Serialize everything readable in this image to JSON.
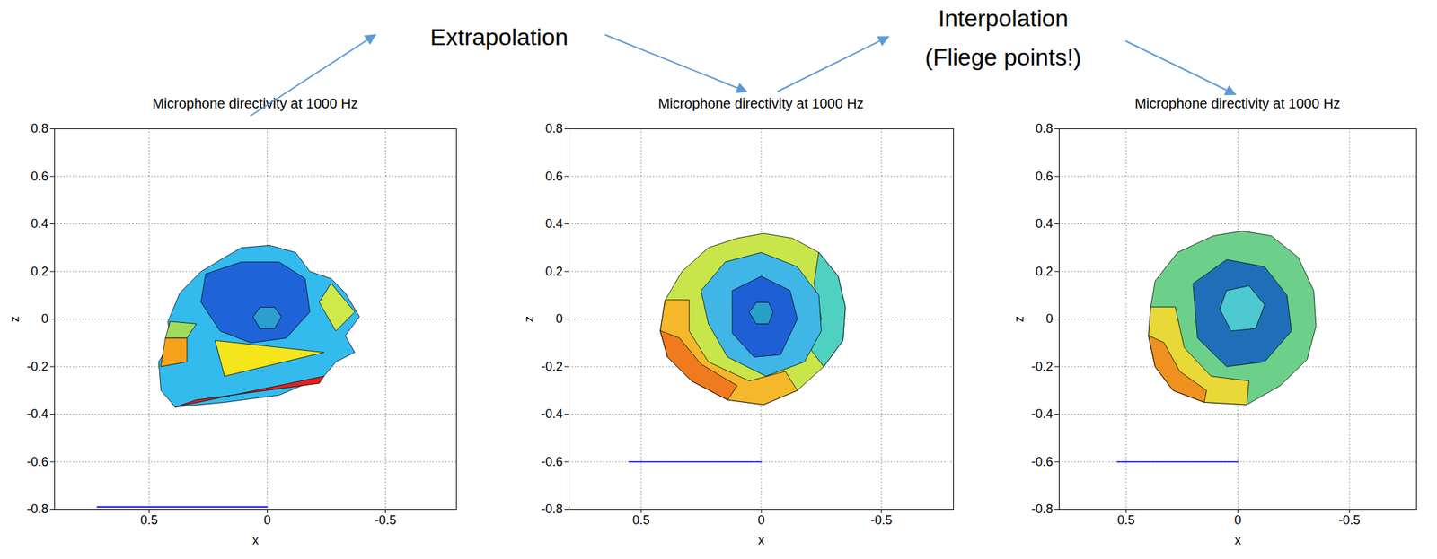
{
  "annotations": [
    "Extrapolation",
    "Interpolation\n(Fliege points!)"
  ],
  "chart_data": [
    {
      "type": "surface",
      "title": "Microphone directivity at 1000 Hz",
      "xlabel": "x",
      "ylabel": "z",
      "xlim": [
        0.9,
        -0.8
      ],
      "ylim": [
        -0.8,
        0.8
      ],
      "xticks": [
        0.5,
        0,
        -0.5
      ],
      "yticks": [
        -0.8,
        -0.6,
        -0.4,
        -0.2,
        0,
        0.2,
        0.4,
        0.6,
        0.8
      ],
      "grid": true,
      "patches": [
        {
          "color": "#33bbee",
          "points": [
            [
              0.42,
              -0.01
            ],
            [
              0.37,
              0.11
            ],
            [
              0.28,
              0.2
            ],
            [
              0.18,
              0.26
            ],
            [
              0.11,
              0.3
            ],
            [
              -0.01,
              0.31
            ],
            [
              -0.12,
              0.28
            ],
            [
              -0.18,
              0.2
            ],
            [
              -0.27,
              0.17
            ],
            [
              -0.33,
              0.11
            ],
            [
              -0.39,
              0.01
            ],
            [
              -0.33,
              -0.07
            ],
            [
              -0.37,
              -0.14
            ],
            [
              -0.29,
              -0.18
            ],
            [
              -0.24,
              -0.24
            ],
            [
              -0.05,
              -0.32
            ],
            [
              0.18,
              -0.35
            ],
            [
              0.39,
              -0.37
            ],
            [
              0.45,
              -0.3
            ],
            [
              0.46,
              -0.18
            ],
            [
              0.41,
              -0.1
            ]
          ]
        },
        {
          "color": "#1e64d8",
          "points": [
            [
              0.26,
              0.19
            ],
            [
              0.11,
              0.24
            ],
            [
              -0.05,
              0.24
            ],
            [
              -0.16,
              0.17
            ],
            [
              -0.18,
              0.03
            ],
            [
              -0.08,
              -0.08
            ],
            [
              0.07,
              -0.1
            ],
            [
              0.2,
              -0.05
            ],
            [
              0.28,
              0.07
            ]
          ]
        },
        {
          "color": "#2a9fd0",
          "points": [
            [
              0.06,
              0.01
            ],
            [
              0.03,
              0.05
            ],
            [
              -0.03,
              0.05
            ],
            [
              -0.06,
              0.01
            ],
            [
              -0.03,
              -0.04
            ],
            [
              0.03,
              -0.04
            ]
          ]
        },
        {
          "color": "#f5e51b",
          "points": [
            [
              0.22,
              -0.09
            ],
            [
              -0.24,
              -0.14
            ],
            [
              0.18,
              -0.24
            ]
          ]
        },
        {
          "color": "#9fdc5a",
          "points": [
            [
              0.41,
              -0.01
            ],
            [
              0.3,
              -0.02
            ],
            [
              0.34,
              -0.08
            ],
            [
              0.43,
              -0.08
            ]
          ]
        },
        {
          "color": "#f7a21b",
          "points": [
            [
              0.43,
              -0.08
            ],
            [
              0.34,
              -0.08
            ],
            [
              0.34,
              -0.18
            ],
            [
              0.45,
              -0.2
            ]
          ]
        },
        {
          "color": "#cfe84a",
          "points": [
            [
              -0.27,
              0.15
            ],
            [
              -0.37,
              0.03
            ],
            [
              -0.29,
              -0.05
            ],
            [
              -0.22,
              0.07
            ]
          ]
        },
        {
          "color": "#e8201a",
          "points": [
            [
              0.39,
              -0.37
            ],
            [
              -0.24,
              -0.24
            ],
            [
              -0.22,
              -0.27
            ],
            [
              0.3,
              -0.34
            ]
          ]
        }
      ],
      "series": [
        {
          "type": "line",
          "color": "#0000ff",
          "x": [
            0.72,
            0
          ],
          "values": [
            -0.79,
            -0.79
          ]
        }
      ]
    },
    {
      "type": "surface",
      "title": "Microphone directivity at 1000 Hz",
      "xlabel": "x",
      "ylabel": "z",
      "xlim": [
        0.8,
        -0.8
      ],
      "ylim": [
        -0.8,
        0.8
      ],
      "xticks": [
        0.5,
        0,
        -0.5
      ],
      "yticks": [
        -0.8,
        -0.6,
        -0.4,
        -0.2,
        0,
        0.2,
        0.4,
        0.6,
        0.8
      ],
      "grid": true,
      "patches": [
        {
          "color": "#c8e64a",
          "points": [
            [
              0.4,
              0.08
            ],
            [
              0.33,
              0.2
            ],
            [
              0.22,
              0.3
            ],
            [
              0.1,
              0.34
            ],
            [
              -0.01,
              0.36
            ],
            [
              -0.13,
              0.34
            ],
            [
              -0.24,
              0.28
            ],
            [
              -0.32,
              0.18
            ],
            [
              -0.35,
              0.05
            ],
            [
              -0.34,
              -0.09
            ],
            [
              -0.26,
              -0.2
            ],
            [
              -0.15,
              -0.3
            ],
            [
              -0.01,
              -0.36
            ],
            [
              0.14,
              -0.34
            ],
            [
              0.29,
              -0.26
            ],
            [
              0.39,
              -0.16
            ],
            [
              0.42,
              -0.05
            ]
          ]
        },
        {
          "color": "#4fd0c0",
          "points": [
            [
              -0.24,
              0.28
            ],
            [
              -0.32,
              0.18
            ],
            [
              -0.35,
              0.05
            ],
            [
              -0.34,
              -0.09
            ],
            [
              -0.26,
              -0.2
            ],
            [
              -0.2,
              -0.12
            ],
            [
              -0.25,
              0.0
            ],
            [
              -0.22,
              0.15
            ]
          ]
        },
        {
          "color": "#f5b82a",
          "points": [
            [
              0.4,
              0.08
            ],
            [
              0.42,
              -0.05
            ],
            [
              0.39,
              -0.16
            ],
            [
              0.29,
              -0.26
            ],
            [
              0.14,
              -0.34
            ],
            [
              -0.01,
              -0.36
            ],
            [
              -0.15,
              -0.3
            ],
            [
              -0.1,
              -0.22
            ],
            [
              0.05,
              -0.26
            ],
            [
              0.22,
              -0.18
            ],
            [
              0.3,
              -0.05
            ],
            [
              0.3,
              0.08
            ]
          ]
        },
        {
          "color": "#f07a1e",
          "points": [
            [
              0.42,
              -0.05
            ],
            [
              0.39,
              -0.16
            ],
            [
              0.29,
              -0.26
            ],
            [
              0.14,
              -0.34
            ],
            [
              0.1,
              -0.28
            ],
            [
              0.25,
              -0.19
            ],
            [
              0.34,
              -0.08
            ]
          ]
        },
        {
          "color": "#3fb6e6",
          "points": [
            [
              0.25,
              0.12
            ],
            [
              0.15,
              0.24
            ],
            [
              0.0,
              0.28
            ],
            [
              -0.15,
              0.22
            ],
            [
              -0.24,
              0.1
            ],
            [
              -0.25,
              -0.05
            ],
            [
              -0.18,
              -0.18
            ],
            [
              -0.02,
              -0.24
            ],
            [
              0.14,
              -0.16
            ],
            [
              0.22,
              -0.02
            ]
          ]
        },
        {
          "color": "#1f5fd6",
          "points": [
            [
              0.12,
              0.12
            ],
            [
              0.0,
              0.18
            ],
            [
              -0.12,
              0.12
            ],
            [
              -0.15,
              0.0
            ],
            [
              -0.08,
              -0.15
            ],
            [
              0.03,
              -0.16
            ],
            [
              0.12,
              -0.06
            ]
          ]
        },
        {
          "color": "#27a0c8",
          "points": [
            [
              0.05,
              0.03
            ],
            [
              0.02,
              0.07
            ],
            [
              -0.03,
              0.07
            ],
            [
              -0.05,
              0.03
            ],
            [
              -0.03,
              -0.02
            ],
            [
              0.02,
              -0.02
            ]
          ]
        }
      ],
      "series": [
        {
          "type": "line",
          "color": "#0000ff",
          "x": [
            0.55,
            0
          ],
          "values": [
            -0.6,
            -0.6
          ]
        }
      ]
    },
    {
      "type": "surface",
      "title": "Microphone directivity at 1000 Hz",
      "xlabel": "x",
      "ylabel": "z",
      "xlim": [
        0.8,
        -0.8
      ],
      "ylim": [
        -0.8,
        0.8
      ],
      "xticks": [
        0.5,
        0,
        -0.5
      ],
      "yticks": [
        -0.8,
        -0.6,
        -0.4,
        -0.2,
        0,
        0.2,
        0.4,
        0.6,
        0.8
      ],
      "grid": true,
      "patches": [
        {
          "color": "#6cd08a",
          "points": [
            [
              0.37,
              0.16
            ],
            [
              0.27,
              0.28
            ],
            [
              0.11,
              0.35
            ],
            [
              -0.02,
              0.37
            ],
            [
              -0.15,
              0.35
            ],
            [
              -0.27,
              0.26
            ],
            [
              -0.34,
              0.12
            ],
            [
              -0.35,
              -0.03
            ],
            [
              -0.31,
              -0.17
            ],
            [
              -0.19,
              -0.28
            ],
            [
              -0.04,
              -0.36
            ],
            [
              0.15,
              -0.35
            ],
            [
              0.29,
              -0.3
            ],
            [
              0.37,
              -0.2
            ],
            [
              0.4,
              -0.07
            ],
            [
              0.39,
              0.05
            ]
          ]
        },
        {
          "color": "#e8d838",
          "points": [
            [
              0.39,
              0.05
            ],
            [
              0.4,
              -0.07
            ],
            [
              0.37,
              -0.2
            ],
            [
              0.29,
              -0.3
            ],
            [
              0.15,
              -0.35
            ],
            [
              -0.04,
              -0.36
            ],
            [
              -0.05,
              -0.26
            ],
            [
              0.12,
              -0.24
            ],
            [
              0.24,
              -0.12
            ],
            [
              0.28,
              0.05
            ]
          ]
        },
        {
          "color": "#f0901e",
          "points": [
            [
              0.4,
              -0.07
            ],
            [
              0.37,
              -0.2
            ],
            [
              0.29,
              -0.3
            ],
            [
              0.15,
              -0.35
            ],
            [
              0.14,
              -0.3
            ],
            [
              0.26,
              -0.22
            ],
            [
              0.33,
              -0.1
            ]
          ]
        },
        {
          "color": "#1f6fb8",
          "points": [
            [
              0.2,
              0.15
            ],
            [
              0.05,
              0.25
            ],
            [
              -0.12,
              0.22
            ],
            [
              -0.22,
              0.1
            ],
            [
              -0.24,
              -0.05
            ],
            [
              -0.12,
              -0.18
            ],
            [
              0.05,
              -0.2
            ],
            [
              0.18,
              -0.08
            ]
          ]
        },
        {
          "color": "#4ec9d0",
          "points": [
            [
              0.05,
              0.12
            ],
            [
              -0.05,
              0.14
            ],
            [
              -0.12,
              0.06
            ],
            [
              -0.08,
              -0.04
            ],
            [
              0.03,
              -0.05
            ],
            [
              0.08,
              0.04
            ]
          ]
        }
      ],
      "series": [
        {
          "type": "line",
          "color": "#0000ff",
          "x": [
            0.54,
            0
          ],
          "values": [
            -0.6,
            -0.6
          ]
        }
      ]
    }
  ]
}
